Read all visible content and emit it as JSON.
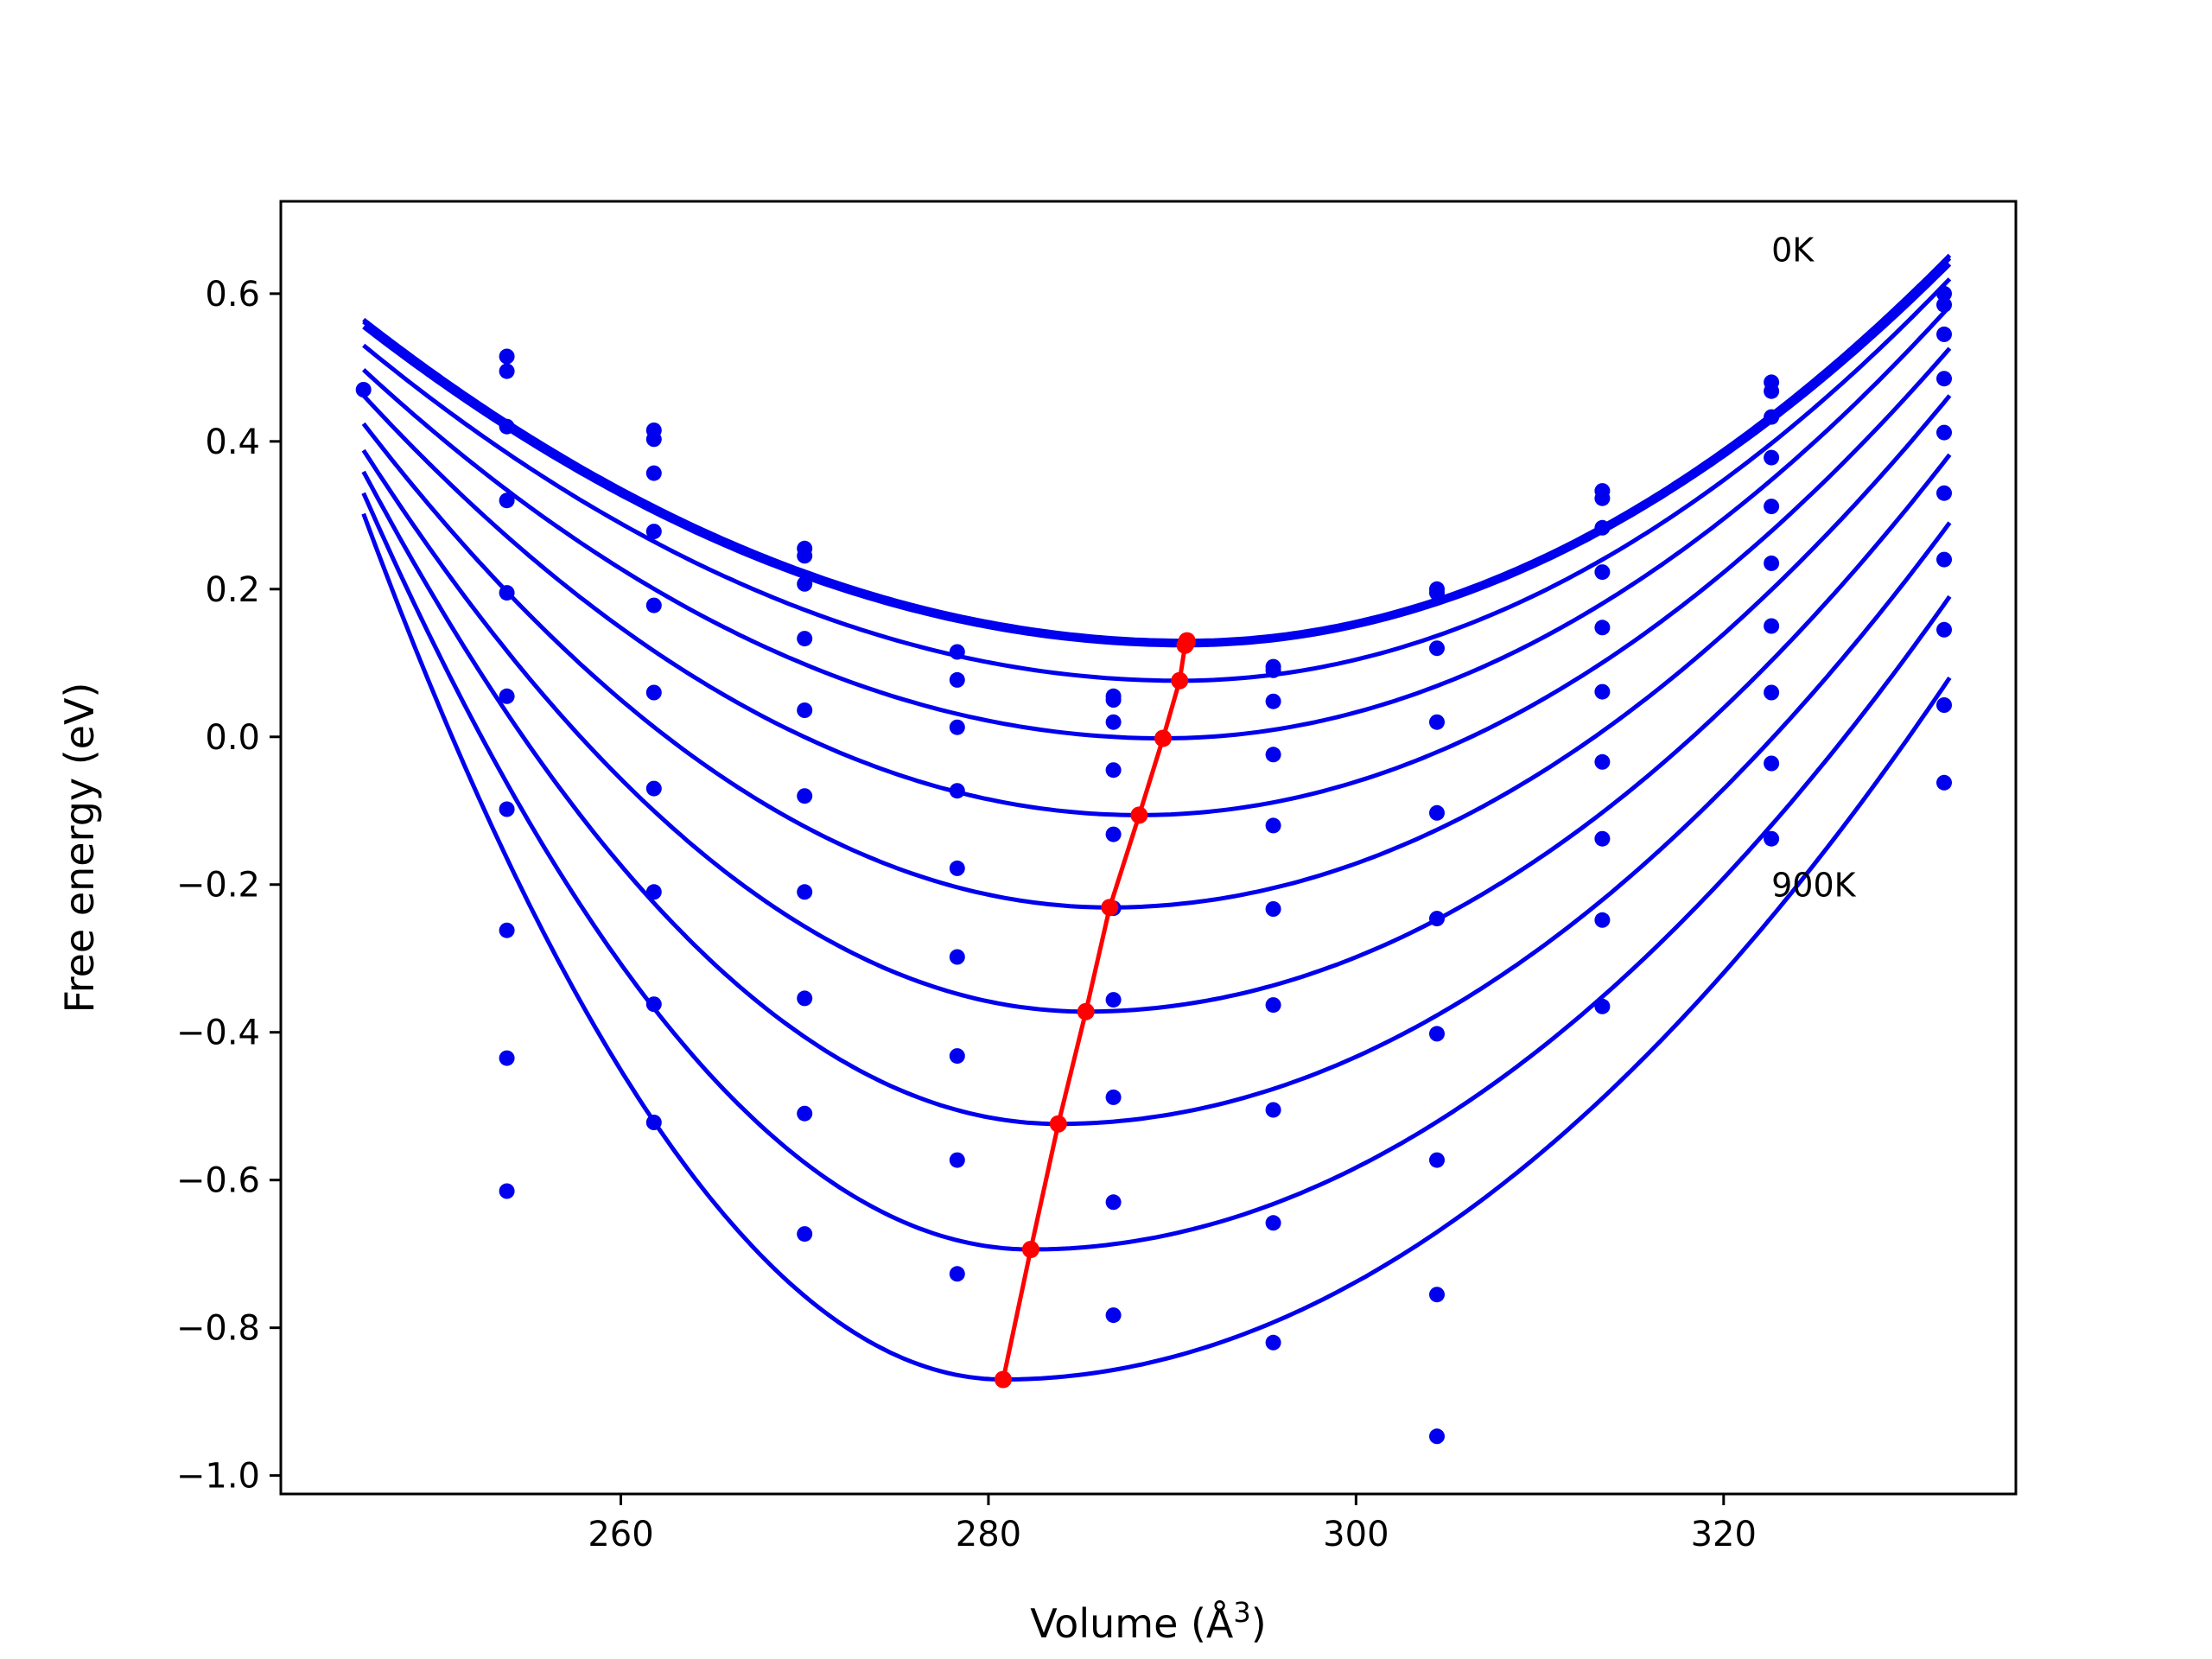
{
  "chart_data": {
    "type": "scatter",
    "title": "",
    "xlabel": "Volume (Å",
    "xlabel_sup": "3",
    "xlabel_end": ")",
    "ylabel": "Free energy (eV)",
    "xlim": [
      241.5,
      335.9
    ],
    "ylim": [
      -1.025,
      0.725
    ],
    "xticks": [
      260,
      280,
      300,
      320
    ],
    "xtick_labels": [
      "260",
      "280",
      "300",
      "320"
    ],
    "yticks": [
      -1.0,
      -0.8,
      -0.6,
      -0.4,
      -0.2,
      0.0,
      0.2,
      0.4,
      0.6
    ],
    "ytick_labels": [
      "−1.0",
      "−0.8",
      "−0.6",
      "−0.4",
      "−0.2",
      "0.0",
      "0.2",
      "0.4",
      "0.6"
    ],
    "grid": false,
    "colors": {
      "curves": "#0000ee",
      "points": "#0000ee",
      "minimum_path": "#ff0000"
    },
    "annotations": [
      {
        "text": "0K",
        "x": 322.6,
        "y": 0.66
      },
      {
        "text": "900K",
        "x": 322.6,
        "y": -0.2
      }
    ],
    "x_domain": [
      246.0,
      332.3
    ],
    "volumes": [
      246.0,
      253.8,
      261.8,
      270.0,
      278.3,
      286.8,
      295.5,
      304.4,
      313.4,
      322.6,
      332.0
    ],
    "curves": [
      {
        "vmin": 290.8,
        "fmin": 0.13,
        "left": 0.565,
        "right": 0.652
      },
      {
        "vmin": 290.8,
        "fmin": 0.128,
        "left": 0.562,
        "right": 0.648
      },
      {
        "vmin": 290.7,
        "fmin": 0.124,
        "left": 0.555,
        "right": 0.64
      },
      {
        "vmin": 290.4,
        "fmin": 0.076,
        "left": 0.53,
        "right": 0.62
      },
      {
        "vmin": 289.5,
        "fmin": -0.002,
        "left": 0.497,
        "right": 0.583
      },
      {
        "vmin": 288.2,
        "fmin": -0.106,
        "left": 0.462,
        "right": 0.526
      },
      {
        "vmin": 286.6,
        "fmin": -0.231,
        "left": 0.424,
        "right": 0.462
      },
      {
        "vmin": 285.3,
        "fmin": -0.372,
        "left": 0.388,
        "right": 0.382
      },
      {
        "vmin": 283.8,
        "fmin": -0.524,
        "left": 0.359,
        "right": 0.29
      },
      {
        "vmin": 282.3,
        "fmin": -0.694,
        "left": 0.33,
        "right": 0.19
      },
      {
        "vmin": 280.8,
        "fmin": -0.87,
        "left": 0.302,
        "right": 0.08
      }
    ],
    "scatter_points": [
      [
        246.0,
        0.47
      ],
      [
        253.8,
        0.515
      ],
      [
        253.8,
        0.495
      ],
      [
        253.8,
        0.42
      ],
      [
        253.8,
        0.32
      ],
      [
        253.8,
        0.195
      ],
      [
        253.8,
        0.055
      ],
      [
        253.8,
        -0.098
      ],
      [
        253.8,
        -0.262
      ],
      [
        253.8,
        -0.435
      ],
      [
        253.8,
        -0.615
      ],
      [
        261.8,
        0.415
      ],
      [
        261.8,
        0.403
      ],
      [
        261.8,
        0.357
      ],
      [
        261.8,
        0.278
      ],
      [
        261.8,
        0.178
      ],
      [
        261.8,
        0.06
      ],
      [
        261.8,
        -0.07
      ],
      [
        261.8,
        -0.21
      ],
      [
        261.8,
        -0.362
      ],
      [
        261.8,
        -0.522
      ],
      [
        270.0,
        0.255
      ],
      [
        270.0,
        0.245
      ],
      [
        270.0,
        0.207
      ],
      [
        270.0,
        0.133
      ],
      [
        270.0,
        0.036
      ],
      [
        270.0,
        -0.08
      ],
      [
        270.0,
        -0.21
      ],
      [
        270.0,
        -0.354
      ],
      [
        270.0,
        -0.51
      ],
      [
        270.0,
        -0.673
      ],
      [
        278.3,
        0.115
      ],
      [
        278.3,
        0.077
      ],
      [
        278.3,
        0.013
      ],
      [
        278.3,
        -0.073
      ],
      [
        278.3,
        -0.178
      ],
      [
        278.3,
        -0.298
      ],
      [
        278.3,
        -0.432
      ],
      [
        278.3,
        -0.573
      ],
      [
        278.3,
        -0.727
      ],
      [
        286.8,
        0.055
      ],
      [
        286.8,
        0.05
      ],
      [
        286.8,
        0.02
      ],
      [
        286.8,
        -0.045
      ],
      [
        286.8,
        -0.132
      ],
      [
        286.8,
        -0.232
      ],
      [
        286.8,
        -0.356
      ],
      [
        286.8,
        -0.488
      ],
      [
        286.8,
        -0.63
      ],
      [
        286.8,
        -0.783
      ],
      [
        295.5,
        0.095
      ],
      [
        295.5,
        0.09
      ],
      [
        295.5,
        0.048
      ],
      [
        295.5,
        -0.024
      ],
      [
        295.5,
        -0.12
      ],
      [
        295.5,
        -0.233
      ],
      [
        295.5,
        -0.363
      ],
      [
        295.5,
        -0.505
      ],
      [
        295.5,
        -0.658
      ],
      [
        295.5,
        -0.82
      ],
      [
        304.4,
        0.2
      ],
      [
        304.4,
        0.195
      ],
      [
        304.4,
        0.12
      ],
      [
        304.4,
        0.02
      ],
      [
        304.4,
        -0.103
      ],
      [
        304.4,
        -0.246
      ],
      [
        304.4,
        -0.402
      ],
      [
        304.4,
        -0.573
      ],
      [
        304.4,
        -0.755
      ],
      [
        304.4,
        -0.947
      ],
      [
        313.4,
        0.333
      ],
      [
        313.4,
        0.323
      ],
      [
        313.4,
        0.283
      ],
      [
        313.4,
        0.223
      ],
      [
        313.4,
        0.148
      ],
      [
        313.4,
        0.061
      ],
      [
        313.4,
        -0.034
      ],
      [
        313.4,
        -0.138
      ],
      [
        313.4,
        -0.248
      ],
      [
        313.4,
        -0.365
      ],
      [
        322.6,
        0.48
      ],
      [
        322.6,
        0.468
      ],
      [
        322.6,
        0.433
      ],
      [
        322.6,
        0.378
      ],
      [
        322.6,
        0.312
      ],
      [
        322.6,
        0.235
      ],
      [
        322.6,
        0.15
      ],
      [
        322.6,
        0.06
      ],
      [
        322.6,
        -0.036
      ],
      [
        322.6,
        -0.138
      ],
      [
        332.0,
        0.6
      ],
      [
        332.0,
        0.585
      ],
      [
        332.0,
        0.545
      ],
      [
        332.0,
        0.485
      ],
      [
        332.0,
        0.412
      ],
      [
        332.0,
        0.33
      ],
      [
        332.0,
        0.24
      ],
      [
        332.0,
        0.145
      ],
      [
        332.0,
        0.043
      ],
      [
        332.0,
        -0.062
      ]
    ]
  }
}
